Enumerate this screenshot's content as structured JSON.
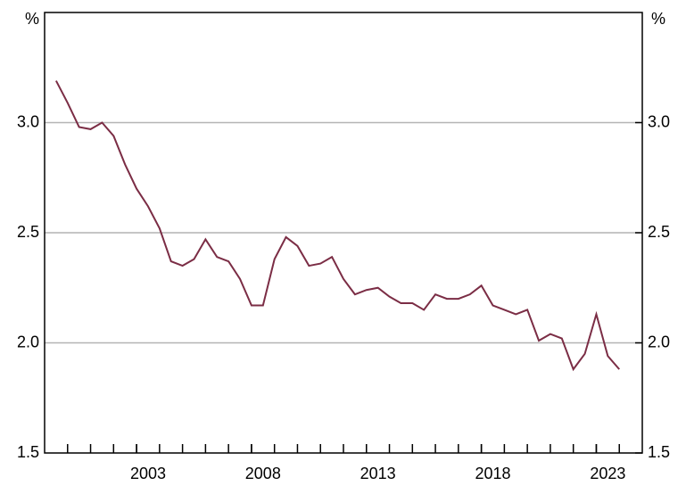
{
  "chart_data": {
    "type": "line",
    "y_unit": "%",
    "y2_unit": "%",
    "x": [
      1999.5,
      2000,
      2000.5,
      2001,
      2001.5,
      2002,
      2002.5,
      2003,
      2003.5,
      2004,
      2004.5,
      2005,
      2005.5,
      2006,
      2006.5,
      2007,
      2007.5,
      2008,
      2008.5,
      2009,
      2009.5,
      2010,
      2010.5,
      2011,
      2011.5,
      2012,
      2012.5,
      2013,
      2013.5,
      2014,
      2014.5,
      2015,
      2015.5,
      2016,
      2016.5,
      2017,
      2017.5,
      2018,
      2018.5,
      2019,
      2019.5,
      2020,
      2020.5,
      2021,
      2021.5,
      2022,
      2022.5,
      2023,
      2023.5,
      2024
    ],
    "series": [
      {
        "color": "#7b2d45",
        "values": [
          3.19,
          3.09,
          2.98,
          2.97,
          3.0,
          2.94,
          2.81,
          2.7,
          2.62,
          2.52,
          2.37,
          2.35,
          2.38,
          2.47,
          2.39,
          2.37,
          2.29,
          2.17,
          2.17,
          2.38,
          2.48,
          2.44,
          2.35,
          2.36,
          2.39,
          2.29,
          2.22,
          2.24,
          2.25,
          2.21,
          2.18,
          2.18,
          2.15,
          2.22,
          2.2,
          2.2,
          2.22,
          2.26,
          2.17,
          2.15,
          2.13,
          2.15,
          2.01,
          2.04,
          2.02,
          1.88,
          1.95,
          2.13,
          1.94,
          1.88
        ]
      }
    ],
    "xlim": [
      1999,
      2025
    ],
    "xticks": [
      2003,
      2008,
      2013,
      2018,
      2023
    ],
    "ylim": [
      1.5,
      3.5
    ],
    "yticks": [
      1.5,
      {
        "value": 2,
        "label": "2.0"
      },
      2.5,
      {
        "value": 3,
        "label": "3.0"
      }
    ],
    "y2lim": [
      1.5,
      3.5
    ],
    "y2ticks": [
      1.5,
      {
        "value": 2,
        "label": "2.0"
      },
      2.5,
      {
        "value": 3,
        "label": "3.0"
      }
    ],
    "grid": true
  }
}
